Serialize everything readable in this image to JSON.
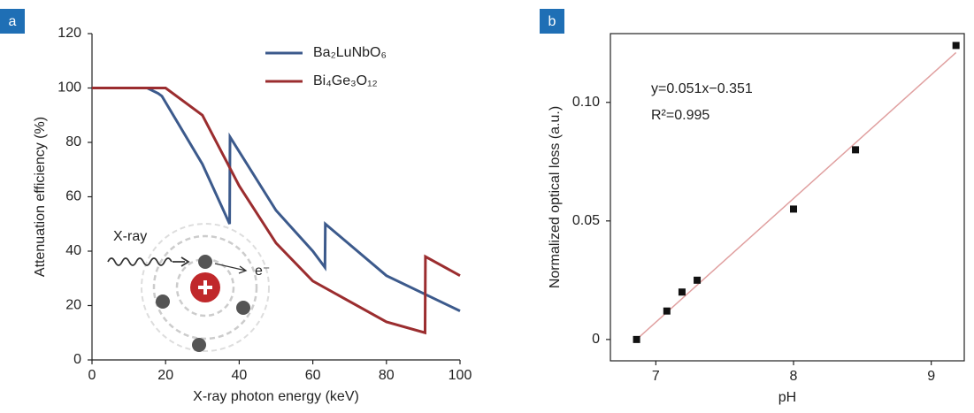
{
  "chart_data": [
    {
      "type": "line",
      "panel_label": "a",
      "x_label": "X-ray photon energy (keV)",
      "y_label": "Attenuation efficiency (%)",
      "xlim": [
        0,
        100
      ],
      "ylim": [
        0,
        120
      ],
      "xticks": [
        0,
        20,
        40,
        60,
        80,
        100
      ],
      "yticks": [
        0,
        20,
        40,
        60,
        80,
        100,
        120
      ],
      "legend": "top-right",
      "annotations": [
        "X-ray",
        "e⁻"
      ],
      "series": [
        {
          "name": "Ba₂LuNbO₆",
          "color": "#3c5a8c",
          "x": [
            0,
            15,
            18,
            19,
            30,
            37.4,
            37.5,
            50,
            60,
            63.3,
            63.4,
            80,
            100
          ],
          "values": [
            100,
            100,
            98,
            97,
            72,
            50,
            82,
            55,
            40,
            34,
            50,
            31,
            18
          ]
        },
        {
          "name": "Bi₄Ge₃O₁₂",
          "color": "#9b2d2f",
          "x": [
            0,
            18,
            20,
            30,
            40,
            50,
            60,
            80,
            90.5,
            90.6,
            100
          ],
          "values": [
            100,
            100,
            100,
            90,
            64,
            43,
            29,
            14,
            10,
            38,
            31
          ]
        }
      ]
    },
    {
      "type": "scatter",
      "panel_label": "b",
      "x_label": "pH",
      "y_label": "Normalized optical loss (a.u.)",
      "xlim": [
        6.67,
        9.24
      ],
      "ylim": [
        -0.009,
        0.129
      ],
      "xticks": [
        7,
        8,
        9
      ],
      "yticks": [
        0,
        0.05,
        {
          "value": 0.1,
          "label": "0.10"
        }
      ],
      "equation": "y=0.051x−0.351",
      "r_squared": "R²=0.995",
      "x": [
        6.86,
        7.08,
        7.19,
        7.3,
        8.0,
        8.45,
        9.18
      ],
      "values": [
        0,
        0.012,
        0.02,
        0.025,
        0.055,
        0.08,
        0.124
      ],
      "color": "#111111",
      "fit": {
        "color": "#e0a0a0",
        "x": [
          6.86,
          9.18
        ],
        "values": [
          0,
          0.121
        ]
      }
    }
  ]
}
